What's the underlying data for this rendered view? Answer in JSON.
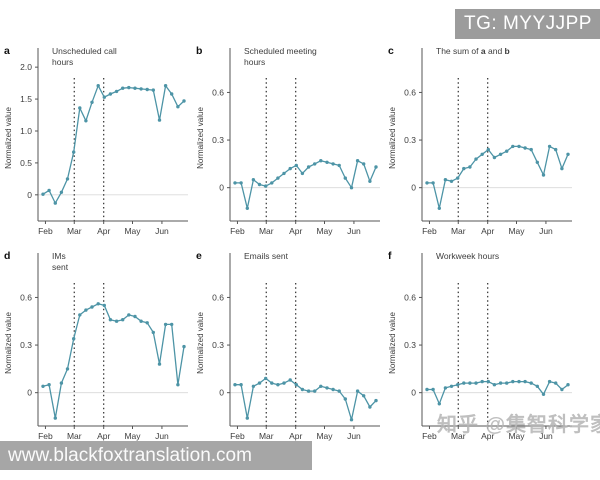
{
  "page": {
    "background": "#ffffff"
  },
  "overlays": {
    "badge": {
      "text": "TG: MYYJJPP",
      "bg": "#9c9c9c",
      "color": "#ffffff"
    },
    "bottom_bar": {
      "text": "www.blackfoxtranslation.com",
      "bg": "#a6a6a6",
      "color": "#fafafa"
    },
    "zhihu_watermark": {
      "text": "知乎 @集智科学家",
      "color": "#b5b5b5"
    }
  },
  "figure": {
    "ylabel": "Normalized value",
    "x_tick_labels": [
      "Feb",
      "Mar",
      "Apr",
      "May",
      "Jun"
    ],
    "x_tick_positions": [
      0.4,
      5.1,
      9.9,
      14.6,
      19.4
    ],
    "vline_positions": [
      5.1,
      9.9
    ],
    "line_color": "#4d94a6",
    "axis_color": "#555555",
    "text_color": "#3d3d3d",
    "zero_line_color": "#d9d9d9",
    "vline_color": "#2f2f2f"
  },
  "chart_data": [
    {
      "id": "a",
      "type": "line",
      "letter": "a",
      "title": "Unscheduled call hours",
      "title_lines": [
        "Unscheduled call",
        "hours"
      ],
      "ylabel": "Normalized value",
      "yticks": [
        0,
        0.5,
        1.0,
        1.5,
        2.0
      ],
      "ytick_labels": [
        "0",
        "0.5",
        "1.0",
        "1.5",
        "2.0"
      ],
      "ylim": [
        -0.41,
        2.3
      ],
      "x_months": [
        "Feb",
        "Mar",
        "Apr",
        "May",
        "Jun"
      ],
      "values": [
        0.01,
        0.07,
        -0.13,
        0.04,
        0.25,
        0.67,
        1.36,
        1.16,
        1.45,
        1.71,
        1.53,
        1.58,
        1.62,
        1.67,
        1.68,
        1.67,
        1.66,
        1.65,
        1.64,
        1.17,
        1.71,
        1.58,
        1.38,
        1.47
      ]
    },
    {
      "id": "b",
      "type": "line",
      "letter": "b",
      "title": "Scheduled meeting hours",
      "title_lines": [
        "Scheduled meeting",
        "hours"
      ],
      "ylabel": "Normalized value",
      "yticks": [
        0,
        0.3,
        0.6
      ],
      "ytick_labels": [
        "0",
        "0.3",
        "0.6"
      ],
      "ylim": [
        -0.21,
        0.88
      ],
      "x_months": [
        "Feb",
        "Mar",
        "Apr",
        "May",
        "Jun"
      ],
      "values": [
        0.03,
        0.03,
        -0.13,
        0.05,
        0.02,
        0.01,
        0.03,
        0.06,
        0.09,
        0.12,
        0.14,
        0.09,
        0.13,
        0.15,
        0.17,
        0.16,
        0.15,
        0.14,
        0.06,
        0.0,
        0.17,
        0.15,
        0.04,
        0.13
      ]
    },
    {
      "id": "c",
      "type": "line",
      "letter": "c",
      "title": "The sum of a and b",
      "title_rich": [
        [
          "The sum of ",
          false
        ],
        [
          "a",
          true
        ],
        [
          " and ",
          false
        ],
        [
          "b",
          true
        ]
      ],
      "ylabel": "Normalized value",
      "yticks": [
        0,
        0.3,
        0.6
      ],
      "ytick_labels": [
        "0",
        "0.3",
        "0.6"
      ],
      "ylim": [
        -0.21,
        0.88
      ],
      "x_months": [
        "Feb",
        "Mar",
        "Apr",
        "May",
        "Jun"
      ],
      "values": [
        0.03,
        0.03,
        -0.13,
        0.05,
        0.04,
        0.06,
        0.12,
        0.13,
        0.18,
        0.21,
        0.24,
        0.19,
        0.21,
        0.23,
        0.26,
        0.26,
        0.25,
        0.24,
        0.16,
        0.08,
        0.26,
        0.24,
        0.12,
        0.21
      ]
    },
    {
      "id": "d",
      "type": "line",
      "letter": "d",
      "title": "IMs sent",
      "title_lines": [
        "IMs",
        "sent"
      ],
      "ylabel": "Normalized value",
      "yticks": [
        0,
        0.3,
        0.6
      ],
      "ytick_labels": [
        "0",
        "0.3",
        "0.6"
      ],
      "ylim": [
        -0.21,
        0.88
      ],
      "x_months": [
        "Feb",
        "Mar",
        "Apr",
        "May",
        "Jun"
      ],
      "values": [
        0.04,
        0.05,
        -0.16,
        0.06,
        0.15,
        0.34,
        0.49,
        0.52,
        0.54,
        0.56,
        0.55,
        0.46,
        0.45,
        0.46,
        0.49,
        0.48,
        0.45,
        0.44,
        0.38,
        0.18,
        0.43,
        0.43,
        0.05,
        0.29
      ]
    },
    {
      "id": "e",
      "type": "line",
      "letter": "e",
      "title": "Emails sent",
      "title_lines": [
        "Emails sent"
      ],
      "ylabel": "Normalized value",
      "yticks": [
        0,
        0.3,
        0.6
      ],
      "ytick_labels": [
        "0",
        "0.3",
        "0.6"
      ],
      "ylim": [
        -0.21,
        0.88
      ],
      "x_months": [
        "Feb",
        "Mar",
        "Apr",
        "May",
        "Jun"
      ],
      "values": [
        0.05,
        0.05,
        -0.16,
        0.04,
        0.06,
        0.09,
        0.06,
        0.05,
        0.06,
        0.08,
        0.05,
        0.02,
        0.01,
        0.01,
        0.04,
        0.03,
        0.02,
        0.01,
        -0.04,
        -0.17,
        0.01,
        -0.02,
        -0.09,
        -0.05
      ]
    },
    {
      "id": "f",
      "type": "line",
      "letter": "f",
      "title": "Workweek hours",
      "title_lines": [
        "Workweek hours"
      ],
      "ylabel": "Normalized value",
      "yticks": [
        0,
        0.3,
        0.6
      ],
      "ytick_labels": [
        "0",
        "0.3",
        "0.6"
      ],
      "ylim": [
        -0.21,
        0.88
      ],
      "x_months": [
        "Feb",
        "Mar",
        "Apr",
        "May",
        "Jun"
      ],
      "values": [
        0.02,
        0.02,
        -0.07,
        0.03,
        0.04,
        0.05,
        0.06,
        0.06,
        0.06,
        0.07,
        0.07,
        0.05,
        0.06,
        0.06,
        0.07,
        0.07,
        0.07,
        0.06,
        0.04,
        -0.01,
        0.07,
        0.06,
        0.02,
        0.05
      ]
    }
  ]
}
